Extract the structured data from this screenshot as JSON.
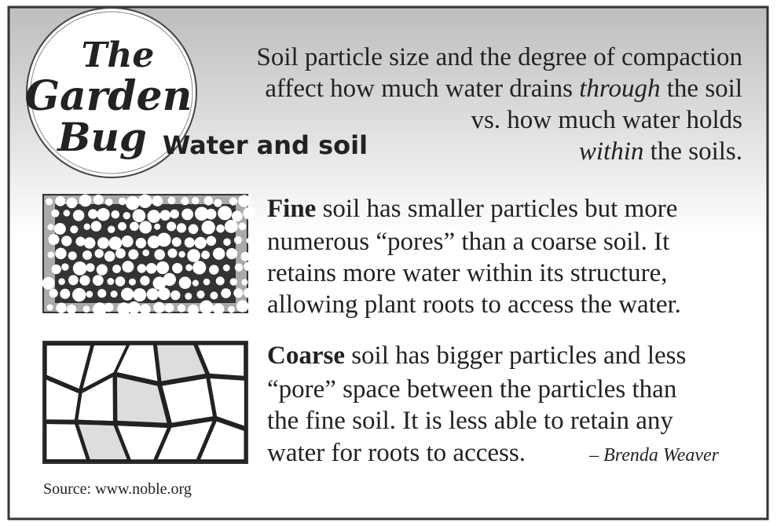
{
  "logo": [
    "The",
    "Garden",
    "Bug"
  ],
  "heading": "Water and soil",
  "intro": {
    "lines": [
      [
        "Soil particle size and the degree of compaction"
      ],
      [
        "affect how much water drains ",
        "through",
        " the soil"
      ],
      [
        "vs. how much water holds"
      ],
      [
        "within",
        " the soils."
      ]
    ]
  },
  "fine": {
    "term": "Fine",
    "lines": [
      " soil has smaller particles but more",
      "numerous “pores” than a coarse soil. It",
      "retains more water within its structure,",
      "allowing plant roots to access the water."
    ]
  },
  "coarse": {
    "term": "Coarse",
    "lines": [
      " soil has bigger particles and less",
      "“pore” space between the particles than",
      "the fine soil. It is less able to retain any",
      "water for roots to access."
    ]
  },
  "author": "– Brenda Weaver",
  "source": "Source: www.noble.org"
}
